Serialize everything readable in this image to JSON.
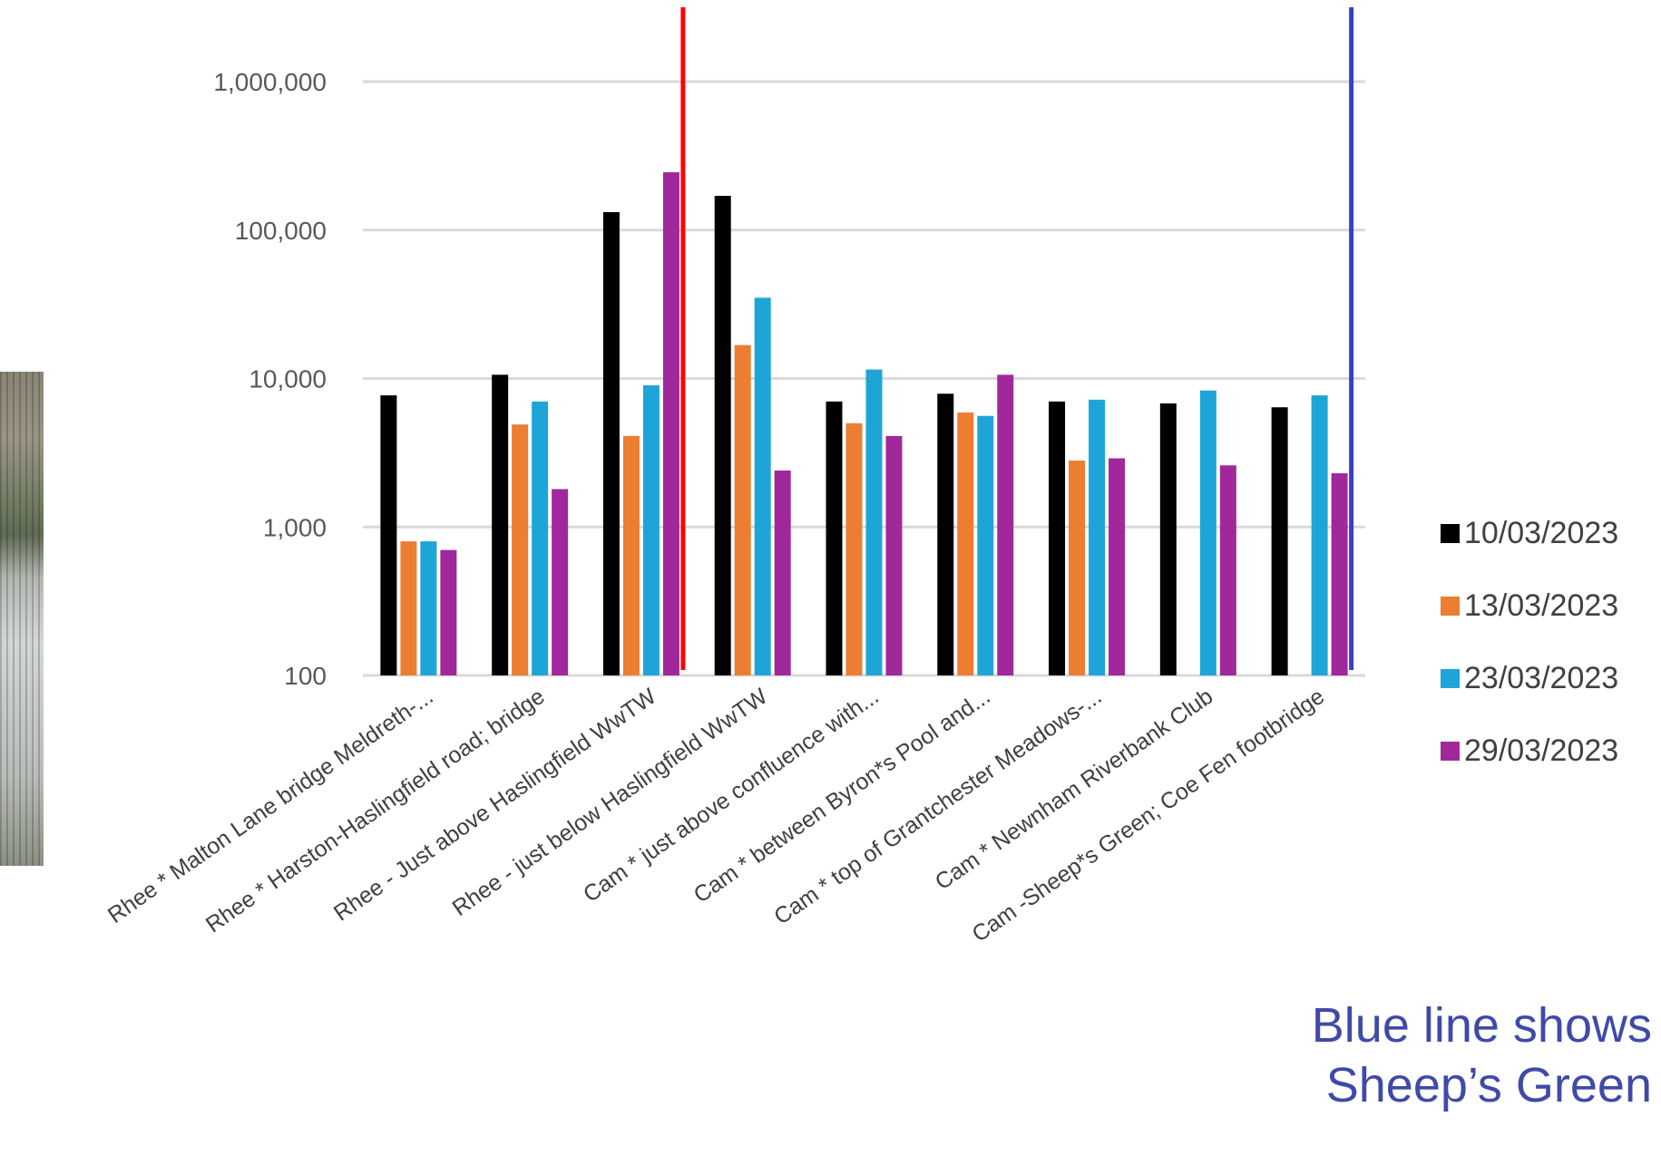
{
  "chart_data": {
    "type": "bar",
    "scale": "log",
    "ylim": [
      100,
      1000000
    ],
    "yticks": [
      "1,000,000",
      "100,000",
      "10,000",
      "1,000",
      "100"
    ],
    "ytick_values": [
      1000000,
      100000,
      10000,
      1000,
      100
    ],
    "grid": true,
    "legend_position": "right",
    "categories": [
      "Rhee * Malton Lane bridge Meldreth-...",
      "Rhee * Harston-Haslingfield road; bridge",
      "Rhee - Just above Haslingfield WwTW",
      "Rhee - just below Haslingfield WwTW",
      "Cam * just above confluence with...",
      "Cam * between Byron*s Pool and...",
      "Cam * top of Grantchester Meadows-...",
      "Cam * Newnham Riverbank Club",
      "Cam -Sheep*s Green; Coe Fen footbridge"
    ],
    "series": [
      {
        "name": "10/03/2023",
        "color": "#000000",
        "values": [
          7700,
          10600,
          132000,
          170000,
          7000,
          7900,
          7000,
          6800,
          6400
        ]
      },
      {
        "name": "13/03/2023",
        "color": "#ed7d31",
        "values": [
          800,
          4900,
          4100,
          16800,
          5000,
          5900,
          2800,
          null,
          null
        ]
      },
      {
        "name": "23/03/2023",
        "color": "#1ea5d8",
        "values": [
          800,
          7000,
          9000,
          35000,
          11500,
          5600,
          7200,
          8300,
          7700
        ]
      },
      {
        "name": "29/03/2023",
        "color": "#a0289a",
        "values": [
          700,
          1800,
          245000,
          2400,
          4100,
          10600,
          2900,
          2600,
          2300
        ]
      }
    ],
    "reference_lines": [
      {
        "color": "#ff0000",
        "after_category": 2
      },
      {
        "color": "#3a3fc4",
        "after_category": 8
      }
    ]
  },
  "annotation": {
    "line1": "Blue line shows",
    "line2": "Sheep’s Green"
  },
  "photo": {
    "icon": "river-photo-image"
  }
}
